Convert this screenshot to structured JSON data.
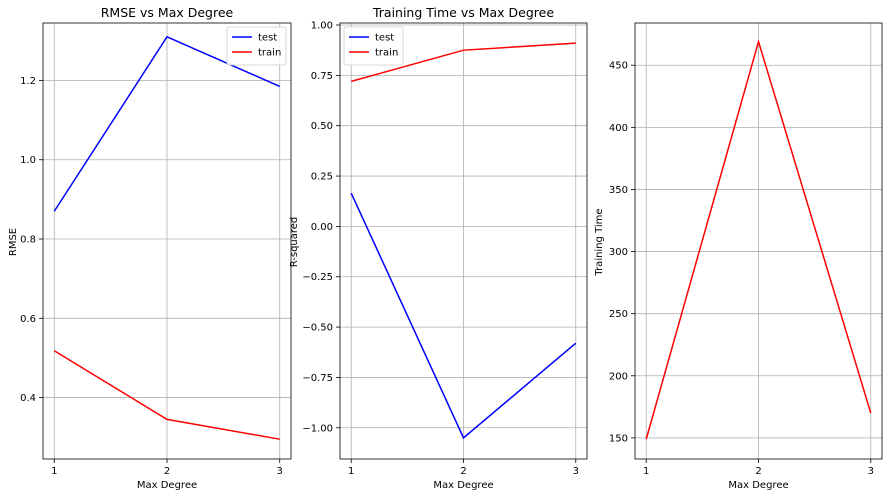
{
  "chart_data": [
    {
      "type": "line",
      "title": "RMSE vs Max Degree",
      "xlabel": "Max Degree",
      "ylabel": "RMSE",
      "x": [
        1,
        2,
        3
      ],
      "xticks": [
        "1",
        "2",
        "3"
      ],
      "ylim": [
        0.245,
        1.345
      ],
      "yticks": [
        "0.4",
        "0.6",
        "0.8",
        "1.0",
        "1.2"
      ],
      "grid": true,
      "legend": "top-right",
      "series": [
        {
          "name": "test",
          "color": "#0000ff",
          "values": [
            0.87,
            1.31,
            1.185
          ]
        },
        {
          "name": "train",
          "color": "#ff0000",
          "values": [
            0.518,
            0.345,
            0.295
          ]
        }
      ]
    },
    {
      "type": "line",
      "title": "Training Time vs Max Degree",
      "xlabel": "Max Degree",
      "ylabel": "R-squared",
      "x": [
        1,
        2,
        3
      ],
      "xticks": [
        "1",
        "2",
        "3"
      ],
      "ylim": [
        -1.155,
        1.01
      ],
      "yticks": [
        "1.00",
        "0.75",
        "0.50",
        "0.25",
        "0.00",
        "−0.25",
        "−0.50",
        "−0.75",
        "−1.00"
      ],
      "grid": true,
      "legend": "top-left",
      "series": [
        {
          "name": "test",
          "color": "#0000ff",
          "values": [
            0.165,
            -1.05,
            -0.58
          ]
        },
        {
          "name": "train",
          "color": "#ff0000",
          "values": [
            0.72,
            0.875,
            0.91
          ]
        }
      ]
    },
    {
      "type": "line",
      "title": "",
      "xlabel": "Max Degree",
      "ylabel": "Training Time",
      "x": [
        1,
        2,
        3
      ],
      "xticks": [
        "1",
        "2",
        "3"
      ],
      "ylim": [
        133,
        484
      ],
      "yticks": [
        "150",
        "200",
        "250",
        "300",
        "350",
        "400",
        "450"
      ],
      "grid": true,
      "legend": "none",
      "series": [
        {
          "name": "",
          "color": "#ff0000",
          "values": [
            149,
            469,
            170
          ]
        }
      ]
    }
  ]
}
